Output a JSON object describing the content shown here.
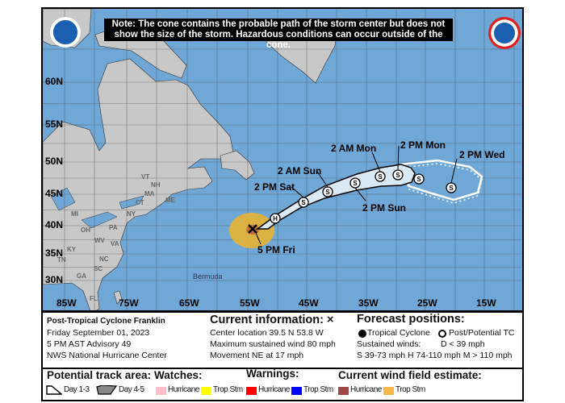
{
  "map": {
    "note": "Note: The cone contains the probable path of the storm center but does not show the size of the storm. Hazardous conditions can occur outside of the cone.",
    "logos": {
      "left": "NOAA",
      "right": "NATIONAL WEATHER SERVICE"
    },
    "lat_labels": [
      "60N",
      "55N",
      "50N",
      "45N",
      "40N",
      "35N",
      "30N"
    ],
    "lon_labels": [
      "85W",
      "75W",
      "65W",
      "55W",
      "45W",
      "35W",
      "25W",
      "15W"
    ],
    "place_labels": [
      "MI",
      "NY",
      "ME",
      "VT",
      "NH",
      "MA",
      "CT",
      "PA",
      "OH",
      "KY",
      "WV",
      "VA",
      "TN",
      "NC",
      "SC",
      "GA",
      "FL",
      "Bermuda"
    ],
    "current_time_label": "5 PM Fri",
    "forecast_points": [
      {
        "symbol": "H",
        "label": ""
      },
      {
        "symbol": "S",
        "label": "2 PM Sat"
      },
      {
        "symbol": "S",
        "label": "2 AM Sun"
      },
      {
        "symbol": "S",
        "label": "2 PM Sun"
      },
      {
        "symbol": "S",
        "label": "2 AM Mon"
      },
      {
        "symbol": "S",
        "label": "2 PM Mon"
      },
      {
        "symbol": "S",
        "label": ""
      },
      {
        "symbol": "S",
        "label": "2 PM Wed"
      }
    ],
    "colors": {
      "ocean": "#6fa7d7",
      "land": "#c8c8c8",
      "cone_day13": "#dbe9f5",
      "trop_storm_wind": "#e0b23a",
      "hurricane_wind": "#c0703a"
    }
  },
  "info": {
    "storm_name": "Post-Tropical Cyclone Franklin",
    "date": "Friday September 01, 2023",
    "advisory": "5 PM AST Advisory 49",
    "center": "NWS National Hurricane Center",
    "current_title": "Current information: ×",
    "location": "Center location 39.5 N 53.8 W",
    "max_wind": "Maximum sustained wind 80 mph",
    "movement": "Movement NE at 17 mph",
    "forecast_title": "Forecast positions:",
    "tropical": "Tropical Cyclone",
    "post": "Post/Potential TC",
    "sustained": "Sustained winds:",
    "d": "D < 39 mph",
    "shm": "S 39-73 mph  H 74-110 mph  M > 110 mph"
  },
  "legend": {
    "track_title": "Potential track area:",
    "day13": "Day 1-3",
    "day45": "Day 4-5",
    "watches_title": "Watches:",
    "warnings_title": "Warnings:",
    "wind_title": "Current wind field estimate:",
    "hurricane": "Hurricane",
    "trop_stm": "Trop Stm",
    "colors": {
      "watch_hurricane": "#ffc0cb",
      "watch_ts": "#ffff00",
      "warn_hurricane": "#ff0000",
      "warn_ts": "#0000ff",
      "wind_hurricane": "#a04848",
      "wind_ts": "#f8b848"
    }
  }
}
